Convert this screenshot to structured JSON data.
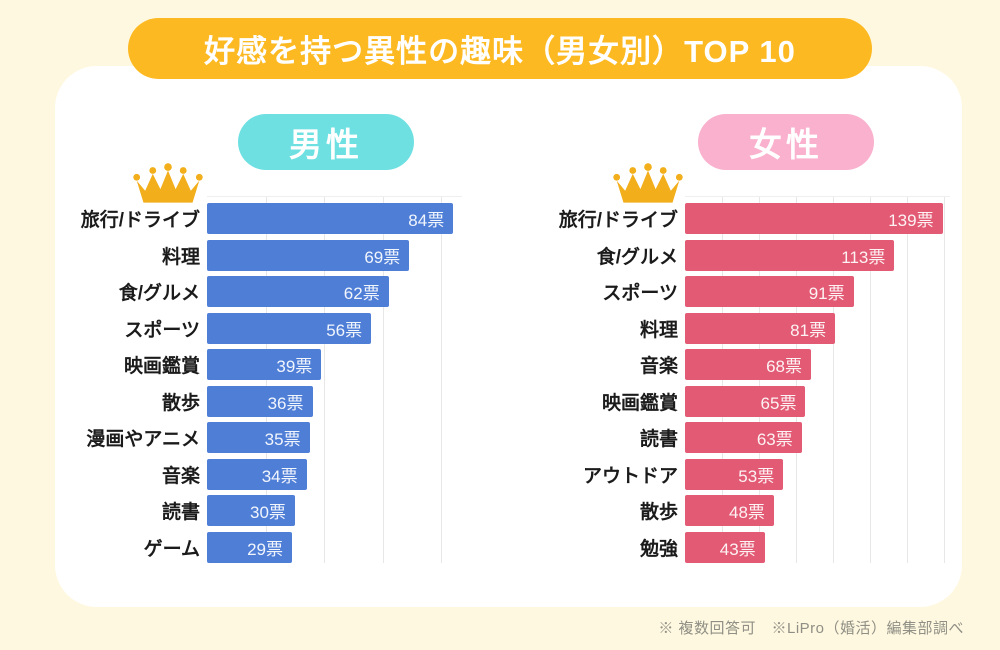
{
  "title": "好感を持つ異性の趣味（男女別）TOP 10",
  "footer": "※ 複数回答可　※LiPro（婚活）編集部調べ",
  "colors": {
    "background": "#FFF8E0",
    "card": "#FFFFFF",
    "banner": "#FDB921",
    "male_header": "#6FE0E2",
    "female_header": "#F9B1CD",
    "male_bar": "#4F7ED7",
    "female_bar": "#E25A73",
    "crown": "#F2AE1B",
    "gridline": "#E7E7E7",
    "footer_text": "#8F8F85"
  },
  "chart_data": [
    {
      "type": "bar",
      "orientation": "horizontal",
      "title": "男性",
      "categories": [
        "旅行/ドライブ",
        "料理",
        "食/グルメ",
        "スポーツ",
        "映画鑑賞",
        "散歩",
        "漫画やアニメ",
        "音楽",
        "読書",
        "ゲーム"
      ],
      "values": [
        84,
        69,
        62,
        56,
        39,
        36,
        35,
        34,
        30,
        29
      ],
      "unit": "票",
      "xlim": [
        0,
        87
      ],
      "gridline_step": 20,
      "grid": true,
      "legend": "none",
      "bar_color": "#4F7ED7",
      "value_label_position": "inside-end"
    },
    {
      "type": "bar",
      "orientation": "horizontal",
      "title": "女性",
      "categories": [
        "旅行/ドライブ",
        "食/グルメ",
        "スポーツ",
        "料理",
        "音楽",
        "映画鑑賞",
        "読書",
        "アウトドア",
        "散歩",
        "勉強"
      ],
      "values": [
        139,
        113,
        91,
        81,
        68,
        65,
        63,
        53,
        48,
        43
      ],
      "unit": "票",
      "xlim": [
        0,
        143
      ],
      "gridline_step": 20,
      "grid": true,
      "legend": "none",
      "bar_color": "#E25A73",
      "value_label_position": "inside-end"
    }
  ]
}
